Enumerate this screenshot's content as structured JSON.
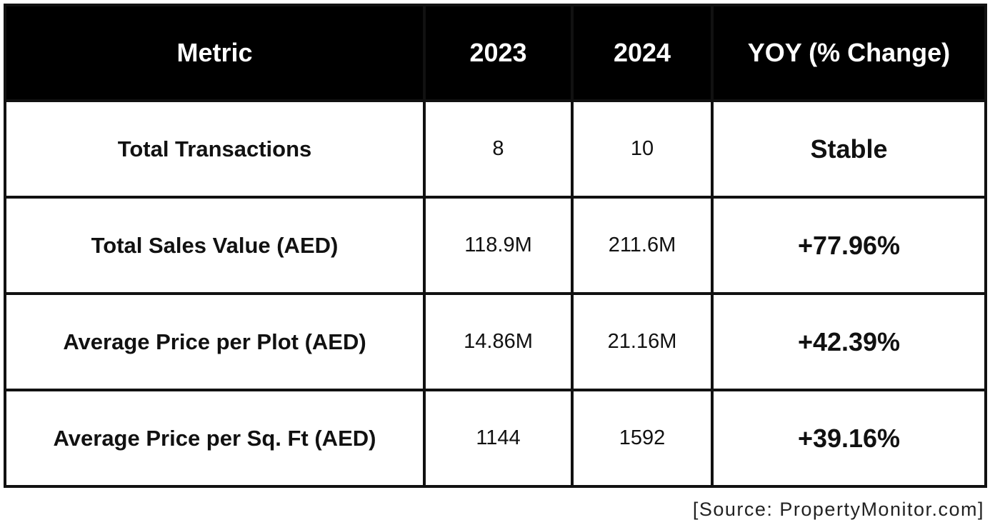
{
  "table": {
    "header": [
      "Metric",
      "2023",
      "2024",
      "YOY (% Change)"
    ],
    "rows": [
      [
        "Total Transactions",
        "8",
        "10",
        "Stable"
      ],
      [
        "Total Sales Value (AED)",
        "118.9M",
        "211.6M",
        "+77.96%"
      ],
      [
        "Average Price per Plot (AED)",
        "14.86M",
        "21.16M",
        "+42.39%"
      ],
      [
        "Average Price per Sq. Ft (AED)",
        "1144",
        "1592",
        "+39.16%"
      ]
    ]
  },
  "source": "[Source: PropertyMonitor.com]"
}
